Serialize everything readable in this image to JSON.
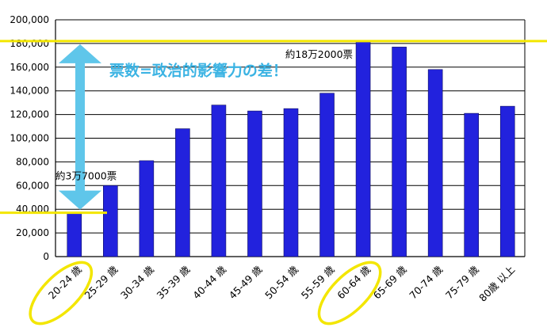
{
  "chart_data": {
    "type": "bar",
    "categories": [
      "20-24 歳",
      "25-29 歳",
      "30-34 歳",
      "35-39 歳",
      "40-44 歳",
      "45-49 歳",
      "50-54 歳",
      "55-59 歳",
      "60-64 歳",
      "65-69 歳",
      "70-74 歳",
      "75-79 歳",
      "80歳 以上"
    ],
    "values": [
      37000,
      60000,
      81000,
      108000,
      128000,
      123000,
      125000,
      138000,
      182000,
      177000,
      158000,
      121000,
      127000
    ],
    "ylim": [
      0,
      200000
    ],
    "yticks": [
      "0",
      "20,000",
      "40,000",
      "60,000",
      "80,000",
      "100,000",
      "120,000",
      "140,000",
      "160,000",
      "180,000",
      "200,000"
    ],
    "grid": true,
    "bar_color": "#2222dd",
    "highlighted_categories": [
      "20-24 歳",
      "60-64 歳"
    ],
    "reference_lines": [
      182000,
      37000
    ],
    "annotations": {
      "max_label": "約18万2000票",
      "min_label": "約3万7000票",
      "headline": "票数=政治的影響力の差！"
    },
    "colors": {
      "highlight": "#f3e600",
      "arrow": "#5fc6ea",
      "headline": "#3bb3e3"
    }
  }
}
